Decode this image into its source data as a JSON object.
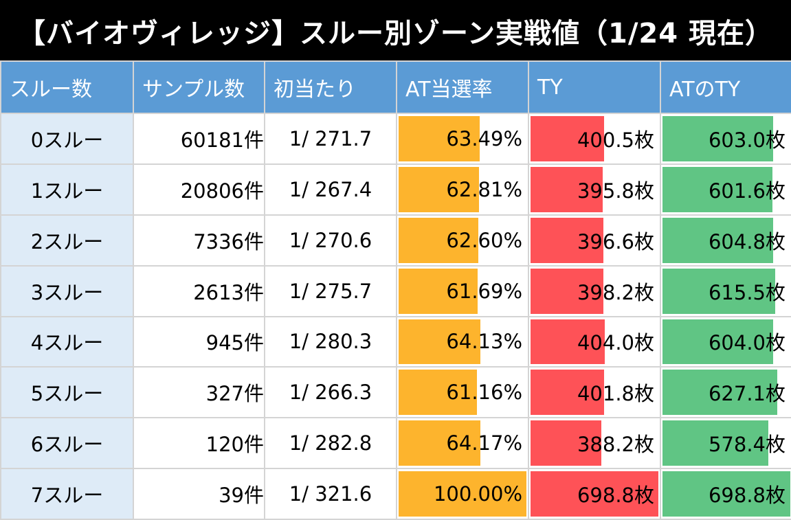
{
  "title": "【バイオヴィレッジ】スルー別ゾーン実戦値（1/24 現在）",
  "colors": {
    "header_bg": "#5b9bd5",
    "label_bg": "#deebf7",
    "at_bar": "#fdb42d",
    "ty_bar": "#fe5257",
    "at_ty_bar": "#60c584"
  },
  "chart_data": {
    "type": "table",
    "title": "【バイオヴィレッジ】スルー別ゾーン実戦値（1/24 現在）",
    "columns": [
      "スルー数",
      "サンプル数",
      "初当たり",
      "AT当選率",
      "TY",
      "ATのTY"
    ],
    "bar_max": {
      "at_rate": 100,
      "ty": 698.8,
      "at_ty": 698.8
    },
    "rows": [
      {
        "label": "0スルー",
        "samples": "60181件",
        "first_hit": "1/ 271.7",
        "at_rate": 63.49,
        "at_rate_text": "63.49%",
        "ty": 400.5,
        "ty_text": "400.5枚",
        "at_ty": 603.0,
        "at_ty_text": "603.0枚"
      },
      {
        "label": "1スルー",
        "samples": "20806件",
        "first_hit": "1/ 267.4",
        "at_rate": 62.81,
        "at_rate_text": "62.81%",
        "ty": 395.8,
        "ty_text": "395.8枚",
        "at_ty": 601.6,
        "at_ty_text": "601.6枚"
      },
      {
        "label": "2スルー",
        "samples": "7336件",
        "first_hit": "1/ 270.6",
        "at_rate": 62.6,
        "at_rate_text": "62.60%",
        "ty": 396.6,
        "ty_text": "396.6枚",
        "at_ty": 604.8,
        "at_ty_text": "604.8枚"
      },
      {
        "label": "3スルー",
        "samples": "2613件",
        "first_hit": "1/ 275.7",
        "at_rate": 61.69,
        "at_rate_text": "61.69%",
        "ty": 398.2,
        "ty_text": "398.2枚",
        "at_ty": 615.5,
        "at_ty_text": "615.5枚"
      },
      {
        "label": "4スルー",
        "samples": "945件",
        "first_hit": "1/ 280.3",
        "at_rate": 64.13,
        "at_rate_text": "64.13%",
        "ty": 404.0,
        "ty_text": "404.0枚",
        "at_ty": 604.0,
        "at_ty_text": "604.0枚"
      },
      {
        "label": "5スルー",
        "samples": "327件",
        "first_hit": "1/ 266.3",
        "at_rate": 61.16,
        "at_rate_text": "61.16%",
        "ty": 401.8,
        "ty_text": "401.8枚",
        "at_ty": 627.1,
        "at_ty_text": "627.1枚"
      },
      {
        "label": "6スルー",
        "samples": "120件",
        "first_hit": "1/ 282.8",
        "at_rate": 64.17,
        "at_rate_text": "64.17%",
        "ty": 388.2,
        "ty_text": "388.2枚",
        "at_ty": 578.4,
        "at_ty_text": "578.4枚"
      },
      {
        "label": "7スルー",
        "samples": "39件",
        "first_hit": "1/ 321.6",
        "at_rate": 100.0,
        "at_rate_text": "100.00%",
        "ty": 698.8,
        "ty_text": "698.8枚",
        "at_ty": 698.8,
        "at_ty_text": "698.8枚"
      }
    ]
  }
}
